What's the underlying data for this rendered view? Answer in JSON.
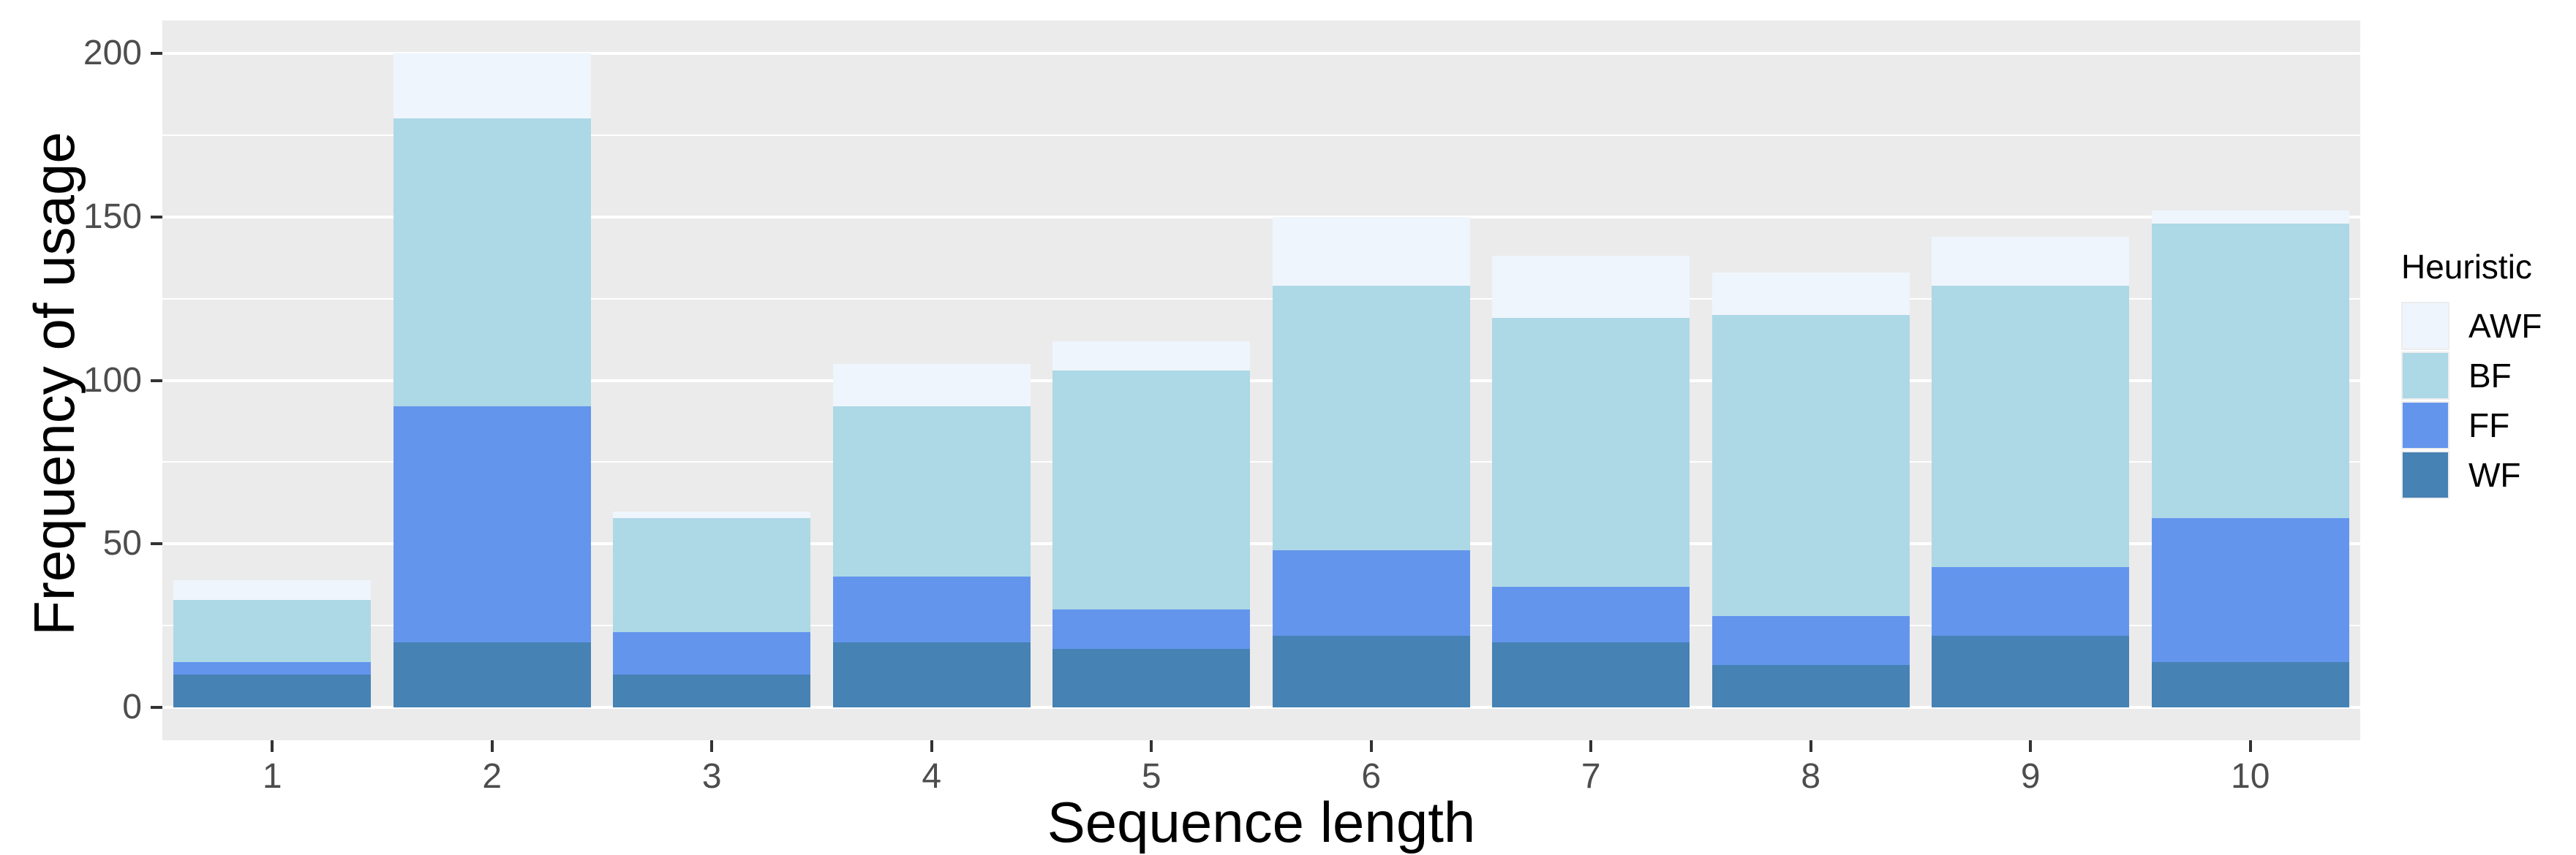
{
  "chart_data": {
    "type": "bar",
    "stacked": true,
    "xlabel": "Sequence length",
    "ylabel": "Frequency of usage",
    "categories": [
      "1",
      "2",
      "3",
      "4",
      "5",
      "6",
      "7",
      "8",
      "9",
      "10"
    ],
    "series": [
      {
        "name": "AWF",
        "color": "#EFF5FC",
        "values": [
          6,
          20,
          2,
          13,
          9,
          21,
          19,
          13,
          15,
          4
        ]
      },
      {
        "name": "BF",
        "color": "#ADD8E6",
        "values": [
          19,
          88,
          35,
          52,
          73,
          81,
          82,
          92,
          86,
          90
        ]
      },
      {
        "name": "FF",
        "color": "#6495ED",
        "values": [
          4,
          72,
          13,
          20,
          12,
          26,
          17,
          15,
          21,
          44
        ]
      },
      {
        "name": "WF",
        "color": "#4682B4",
        "values": [
          10,
          20,
          10,
          20,
          18,
          22,
          20,
          13,
          22,
          14
        ]
      }
    ],
    "stack_order_bottom_to_top": [
      "WF",
      "FF",
      "BF",
      "AWF"
    ],
    "totals": [
      39,
      200,
      60,
      105,
      112,
      150,
      138,
      133,
      144,
      152
    ],
    "yticks": [
      0,
      50,
      100,
      150,
      200
    ],
    "minor_gridlines": [
      25,
      75,
      125,
      175
    ],
    "ylim": [
      0,
      200
    ],
    "grid": true,
    "legend": {
      "title": "Heuristic",
      "position": "right",
      "entries": [
        "AWF",
        "BF",
        "FF",
        "WF"
      ]
    },
    "colors": {
      "panel_bg": "#EBEBEB",
      "gridline": "#FFFFFF",
      "tick_label": "#4D4D4D",
      "axis_title": "#000000"
    }
  }
}
